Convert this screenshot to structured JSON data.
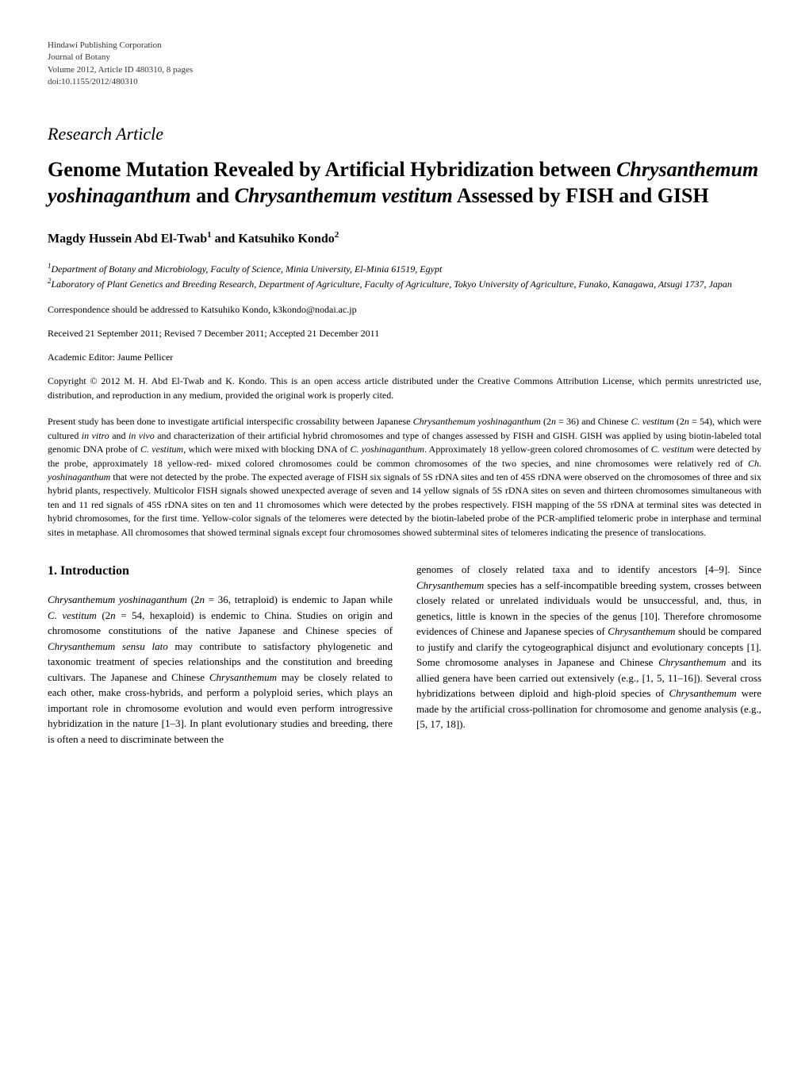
{
  "header": {
    "publisher": "Hindawi Publishing Corporation",
    "journal": "Journal of Botany",
    "volume_info": "Volume 2012, Article ID 480310, 8 pages",
    "doi": "doi:10.1155/2012/480310"
  },
  "article": {
    "type": "Research Article",
    "title_part1": "Genome Mutation Revealed by Artificial Hybridization between ",
    "title_italic1": "Chrysanthemum yoshinaganthum",
    "title_part2": " and ",
    "title_italic2": "Chrysanthemum vestitum",
    "title_part3": " Assessed by FISH and GISH",
    "authors": "Magdy Hussein Abd El-Twab",
    "author1_sup": "1",
    "authors_and": " and Katsuhiko Kondo",
    "author2_sup": "2",
    "affiliation1_sup": "1",
    "affiliation1": "Department of Botany and Microbiology, Faculty of Science, Minia University, El-Minia 61519, Egypt",
    "affiliation2_sup": "2",
    "affiliation2": "Laboratory of Plant Genetics and Breeding Research, Department of Agriculture, Faculty of Agriculture, Tokyo University of Agriculture, Funako, Kanagawa, Atsugi 1737, Japan",
    "correspondence": "Correspondence should be addressed to Katsuhiko Kondo, k3kondo@nodai.ac.jp",
    "received": "Received 21 September 2011; Revised 7 December 2011; Accepted 21 December 2011",
    "editor": "Academic Editor: Jaume Pellicer",
    "copyright": "Copyright © 2012 M. H. Abd El-Twab and K. Kondo. This is an open access article distributed under the Creative Commons Attribution License, which permits unrestricted use, distribution, and reproduction in any medium, provided the original work is properly cited."
  },
  "abstract": {
    "text1": "Present study has been done to investigate artificial interspecific crossability between Japanese ",
    "italic1": "Chrysanthemum yoshinaganthum",
    "text2": " (2",
    "italic_n1": "n",
    "text3": " = 36) and Chinese ",
    "italic2": "C. vestitum",
    "text4": " (2",
    "italic_n2": "n",
    "text5": " = 54), which were cultured ",
    "italic3": "in vitro",
    "text6": " and ",
    "italic4": "in vivo",
    "text7": " and characterization of their artificial hybrid chromosomes and type of changes assessed by FISH and GISH. GISH was applied by using biotin-labeled total genomic DNA probe of ",
    "italic5": "C. vestitum",
    "text8": ", which were mixed with blocking DNA of ",
    "italic6": "C. yoshinaganthum",
    "text9": ". Approximately 18 yellow-green colored chromosomes of ",
    "italic7": "C. vestitum",
    "text10": " were detected by the probe, approximately 18 yellow-red- mixed colored chromosomes could be common chromosomes of the two species, and nine chromosomes were relatively red of ",
    "italic8": "Ch. yoshinaganthum",
    "text11": " that were not detected by the probe. The expected average of FISH six signals of 5S rDNA sites and ten of 45S rDNA were observed on the chromosomes of three and six hybrid plants, respectively. Multicolor FISH signals showed unexpected average of seven and 14 yellow signals of 5S rDNA sites on seven and thirteen chromosomes simultaneous with ten and 11 red signals of 45S rDNA sites on ten and 11 chromosomes which were detected by the probes respectively. FISH mapping of the 5S rDNA at terminal sites was detected in hybrid chromosomes, for the first time. Yellow-color signals of the telomeres were detected by the biotin-labeled probe of the PCR-amplified telomeric probe in interphase and terminal sites in metaphase. All chromosomes that showed terminal signals except four chromosomes showed subterminal sites of telomeres indicating the presence of translocations."
  },
  "body": {
    "section_title": "1. Introduction",
    "col1_italic1": "Chrysanthemum yoshinaganthum",
    "col1_text1": " (2",
    "col1_n1": "n",
    "col1_text2": " = 36, tetraploid) is endemic to Japan while ",
    "col1_italic2": "C. vestitum",
    "col1_text3": " (2",
    "col1_n2": "n",
    "col1_text4": " = 54, hexaploid) is endemic to China. Studies on origin and chromosome constitutions of the native Japanese and Chinese species of ",
    "col1_italic3": "Chrysanthemum sensu lato",
    "col1_text5": " may contribute to satisfactory phylogenetic and taxonomic treatment of species relationships and the constitution and breeding cultivars. The Japanese and Chinese ",
    "col1_italic4": "Chrysanthemum",
    "col1_text6": " may be closely related to each other, make cross-hybrids, and perform a polyploid series, which plays an important role in chromosome evolution and would even perform introgressive hybridization in the nature [1–3]. In plant evolutionary studies and breeding, there is often a need to discriminate between the",
    "col2_text1": "genomes of closely related taxa and to identify ancestors [4–9]. Since ",
    "col2_italic1": "Chrysanthemum",
    "col2_text2": " species has a self-incompatible breeding system, crosses between closely related or unrelated individuals would be unsuccessful, and, thus, in genetics, little is known in the species of the genus [10]. Therefore chromosome evidences of Chinese and Japanese species of ",
    "col2_italic2": "Chrysanthemum",
    "col2_text3": " should be compared to justify and clarify the cytogeographical disjunct and evolutionary concepts [1]. Some chromosome analyses in Japanese and Chinese ",
    "col2_italic3": "Chrysanthemum",
    "col2_text4": " and its allied genera have been carried out extensively (e.g., [1, 5, 11–16]). Several cross hybridizations between diploid and high-ploid species of ",
    "col2_italic4": "Chrysanthemum",
    "col2_text5": " were made by the artificial cross-pollination for chromosome and genome analysis (e.g., [5, 17, 18])."
  }
}
